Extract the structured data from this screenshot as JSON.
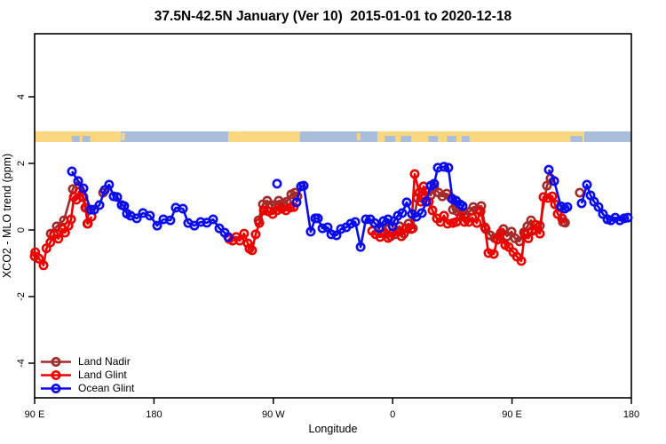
{
  "chart_data": {
    "type": "line",
    "title": "37.5N-42.5N January (Ver 10)  2015-01-01 to 2020-12-18",
    "xlabel": "Longitude",
    "ylabel": "XCO2 - MLO trend (ppm)",
    "x_axis": {
      "note": "x is degrees east of 90E, wrapping 450 degrees total",
      "range_deg": [
        0,
        450
      ],
      "ticks": [
        {
          "pos": 0,
          "label": "90 E"
        },
        {
          "pos": 90,
          "label": "180"
        },
        {
          "pos": 180,
          "label": "90 W"
        },
        {
          "pos": 270,
          "label": "0"
        },
        {
          "pos": 360,
          "label": "90 E"
        },
        {
          "pos": 450,
          "label": "180"
        }
      ]
    },
    "y_axis": {
      "ticks": [
        {
          "v": -4,
          "label": "-4"
        },
        {
          "v": -2,
          "label": "-2"
        },
        {
          "v": 0,
          "label": "0"
        },
        {
          "v": 2,
          "label": "2"
        },
        {
          "v": 4,
          "label": "4"
        }
      ],
      "range_ppm": [
        -5.0,
        5.9
      ],
      "grid": false
    },
    "map_strip": {
      "ppm_center": 2.8,
      "land_color": "#FAD67F",
      "ocean_color": "#A9BEDB",
      "segments": [
        {
          "from": 0,
          "to": 65,
          "type": "land"
        },
        {
          "from": 65,
          "to": 146,
          "type": "ocean"
        },
        {
          "from": 146,
          "to": 200,
          "type": "land"
        },
        {
          "from": 200,
          "to": 258.5,
          "type": "ocean"
        },
        {
          "from": 258.5,
          "to": 414.5,
          "type": "land"
        },
        {
          "from": 414.5,
          "to": 450,
          "type": "ocean"
        }
      ],
      "ocean_patches": [
        [
          28,
          34
        ],
        [
          36,
          42
        ],
        [
          264,
          272
        ],
        [
          276,
          284
        ],
        [
          297,
          304
        ],
        [
          311,
          318
        ],
        [
          322,
          328
        ],
        [
          404,
          413
        ]
      ],
      "land_patches": [
        [
          65.5,
          68
        ],
        [
          243,
          245.5
        ]
      ]
    },
    "legend_position": "bottom-left",
    "series": [
      {
        "name": "Land Nadir",
        "color": "#A52A2A",
        "segments": [
          [
            [
              12.1,
              -0.11
            ],
            [
              16.7,
              0.11
            ],
            [
              22.1,
              0.29
            ],
            [
              28.8,
              1.23
            ],
            [
              32.8,
              1.47
            ],
            [
              36.8,
              0.99
            ],
            [
              38.8,
              0.67
            ],
            [
              39.7,
              0.19
            ]
          ],
          [
            [
              51.6,
              1.12
            ]
          ],
          [
            [
              168.8,
              0.29
            ],
            [
              172.1,
              0.77
            ],
            [
              175.4,
              0.88
            ],
            [
              178.8,
              0.75
            ],
            [
              181.5,
              0.75
            ],
            [
              184.1,
              0.88
            ],
            [
              187.5,
              0.8
            ],
            [
              190.2,
              0.85
            ],
            [
              193.5,
              1.07
            ],
            [
              196.2,
              1.12
            ],
            [
              198.2,
              1.01
            ]
          ],
          [
            [
              261.8,
              0.08
            ],
            [
              265.2,
              0.03
            ],
            [
              268.5,
              -0.19
            ],
            [
              271.9,
              -0.13
            ],
            [
              275.2,
              0.11
            ],
            [
              278.6,
              -0.11
            ],
            [
              281.9,
              0.19
            ],
            [
              285.3,
              0.05
            ],
            [
              288.6,
              0.96
            ],
            [
              292,
              1.04
            ],
            [
              295.3,
              1.15
            ],
            [
              298.7,
              1.04
            ],
            [
              301.3,
              1.28
            ],
            [
              304.7,
              1.12
            ],
            [
              307.4,
              1.01
            ],
            [
              310.7,
              1.09
            ],
            [
              314.1,
              0.96
            ],
            [
              315.4,
              0.61
            ],
            [
              318.8,
              0.56
            ],
            [
              322.1,
              0.53
            ],
            [
              324.8,
              0.48
            ],
            [
              328.1,
              0.55
            ],
            [
              330.8,
              0.69
            ],
            [
              334.1,
              0.61
            ],
            [
              336.8,
              0.72
            ],
            [
              340.2,
              0.03
            ],
            [
              343.5,
              -0.16
            ],
            [
              346.9,
              -0.24
            ],
            [
              350.2,
              -0.19
            ],
            [
              353.5,
              0.03
            ],
            [
              356.2,
              -0.19
            ],
            [
              359.6,
              -0.05
            ],
            [
              362.3,
              -0.25
            ],
            [
              365.6,
              -0.34
            ],
            [
              369,
              -0.07
            ],
            [
              371.6,
              0.11
            ],
            [
              374.3,
              0.29
            ],
            [
              377.7,
              0.0
            ],
            [
              381,
              0.13
            ],
            [
              386.3,
              1.33
            ],
            [
              389,
              1.55
            ]
          ],
          [
            [
              398.4,
              0.24
            ],
            [
              400,
              0.22
            ]
          ],
          [
            [
              411.1,
              1.12
            ]
          ]
        ]
      },
      {
        "name": "Land Glint",
        "color": "#EE0000",
        "segments": [
          [
            [
              0,
              -0.79
            ],
            [
              0.5,
              -0.67
            ],
            [
              3.3,
              -0.86
            ],
            [
              6.7,
              -1.06
            ],
            [
              8.9,
              -0.55
            ],
            [
              11.9,
              -0.37
            ],
            [
              14.5,
              -0.13
            ],
            [
              17.9,
              -0.26
            ],
            [
              20.8,
              0.03
            ],
            [
              23,
              -0.08
            ],
            [
              25.6,
              0.13
            ],
            [
              27.5,
              0.32
            ],
            [
              29.5,
              0.99
            ],
            [
              31.5,
              0.91
            ],
            [
              33.5,
              1.15
            ],
            [
              36.2,
              0.99
            ],
            [
              38.2,
              0.67
            ],
            [
              40.2,
              0.19
            ],
            [
              42.9,
              0.4
            ]
          ],
          [
            [
              146.7,
              -0.27
            ],
            [
              149.3,
              -0.32
            ],
            [
              152,
              -0.21
            ],
            [
              154.7,
              -0.32
            ],
            [
              158,
              -0.11
            ],
            [
              160.7,
              -0.4
            ],
            [
              162,
              -0.56
            ],
            [
              164,
              -0.61
            ],
            [
              166.7,
              -0.13
            ],
            [
              169.4,
              0.21
            ],
            [
              172.8,
              0.59
            ],
            [
              176.1,
              0.56
            ],
            [
              179.5,
              0.48
            ],
            [
              182.8,
              0.59
            ],
            [
              186.2,
              0.64
            ],
            [
              189.5,
              0.59
            ],
            [
              192.8,
              0.67
            ],
            [
              195.5,
              0.69
            ]
          ],
          [
            [
              254.5,
              -0.03
            ],
            [
              257.1,
              -0.13
            ],
            [
              260.5,
              -0.21
            ],
            [
              263.8,
              -0.11
            ],
            [
              266.5,
              -0.24
            ],
            [
              269.9,
              -0.08
            ],
            [
              273.2,
              -0.03
            ],
            [
              276.6,
              -0.19
            ],
            [
              279.9,
              0.05
            ],
            [
              283.9,
              0.03
            ],
            [
              286.6,
              1.68
            ],
            [
              290,
              1.12
            ],
            [
              291.3,
              0.85
            ],
            [
              293.3,
              1.31
            ],
            [
              294.6,
              1.17
            ],
            [
              297.3,
              0.85
            ],
            [
              300,
              0.59
            ],
            [
              303.3,
              0.35
            ],
            [
              306,
              0.24
            ],
            [
              308.7,
              0.43
            ],
            [
              311.4,
              0.19
            ],
            [
              315.4,
              0.21
            ],
            [
              318.1,
              0.24
            ],
            [
              321.4,
              0.4
            ],
            [
              324.1,
              0.24
            ],
            [
              327.4,
              0.24
            ],
            [
              330.1,
              0.37
            ],
            [
              333.5,
              0.21
            ],
            [
              336.2,
              0.56
            ],
            [
              339.5,
              0.08
            ],
            [
              342.2,
              -0.69
            ],
            [
              346.2,
              -0.72
            ],
            [
              348.9,
              -0.29
            ],
            [
              351.6,
              -0.08
            ],
            [
              354.9,
              -0.45
            ],
            [
              357.6,
              -0.51
            ],
            [
              361,
              -0.67
            ],
            [
              363.6,
              -0.8
            ],
            [
              367,
              -0.93
            ],
            [
              369.6,
              -0.13
            ],
            [
              372.3,
              -0.25
            ],
            [
              375,
              -0.03
            ],
            [
              377.7,
              0.16
            ],
            [
              381,
              -0.11
            ],
            [
              383.7,
              0.99
            ],
            [
              387,
              0.96
            ],
            [
              390.4,
              1.01
            ],
            [
              392.4,
              0.77
            ],
            [
              394.4,
              0.48
            ],
            [
              397.7,
              0.35
            ]
          ]
        ]
      },
      {
        "name": "Ocean Glint",
        "color": "#0B0BEE",
        "segments": [
          [
            [
              28.1,
              1.76
            ],
            [
              32.8,
              1.47
            ],
            [
              36.8,
              1.25
            ],
            [
              42.2,
              0.61
            ],
            [
              44.9,
              0.61
            ],
            [
              48.9,
              0.75
            ],
            [
              52.9,
              1.2
            ],
            [
              56.2,
              1.36
            ],
            [
              59.6,
              1.01
            ],
            [
              62.3,
              0.99
            ],
            [
              65.6,
              0.75
            ],
            [
              67.6,
              0.72
            ],
            [
              69.6,
              0.49
            ],
            [
              72.3,
              0.43
            ],
            [
              77,
              0.35
            ],
            [
              81.7,
              0.51
            ],
            [
              87,
              0.43
            ],
            [
              92.4,
              0.13
            ],
            [
              97.1,
              0.32
            ],
            [
              102.4,
              0.29
            ],
            [
              106.4,
              0.67
            ],
            [
              111.8,
              0.64
            ],
            [
              115.8,
              0.21
            ],
            [
              120.5,
              0.13
            ],
            [
              125.2,
              0.24
            ],
            [
              129.9,
              0.22
            ],
            [
              134.6,
              0.32
            ],
            [
              139.3,
              0.05
            ],
            [
              143.3,
              -0.08
            ],
            [
              146,
              -0.21
            ]
          ],
          [
            [
              182.8,
              1.39
            ]
          ],
          [
            [
              197.5,
              0.83
            ],
            [
              200.9,
              1.31
            ],
            [
              202.9,
              1.33
            ],
            [
              208.2,
              -0.05
            ],
            [
              211.6,
              0.35
            ],
            [
              213.6,
              0.35
            ],
            [
              217,
              0.05
            ],
            [
              221,
              0.08
            ],
            [
              223.7,
              -0.13
            ],
            [
              227.7,
              -0.16
            ],
            [
              231,
              0.03
            ],
            [
              235,
              0.08
            ],
            [
              238.4,
              0.19
            ],
            [
              241.8,
              0.24
            ],
            [
              245.8,
              -0.51
            ],
            [
              249.8,
              0.32
            ],
            [
              253.1,
              0.32
            ],
            [
              256.4,
              0.21
            ],
            [
              259.8,
              0.06
            ],
            [
              263.1,
              0.27
            ],
            [
              266.5,
              0.32
            ],
            [
              269.9,
              0.11
            ],
            [
              271.2,
              0.27
            ],
            [
              273.9,
              0.43
            ],
            [
              277.2,
              0.51
            ],
            [
              280.6,
              0.83
            ],
            [
              284.6,
              0.48
            ],
            [
              287.9,
              0.4
            ],
            [
              292,
              0.51
            ],
            [
              295.3,
              0.85
            ],
            [
              298.7,
              1.33
            ],
            [
              301.3,
              1.39
            ],
            [
              304,
              1.87
            ],
            [
              308.7,
              1.9
            ],
            [
              312,
              1.87
            ],
            [
              315.1,
              0.93
            ],
            [
              317.8,
              0.88
            ],
            [
              320.8,
              0.77
            ],
            [
              322.8,
              0.72
            ]
          ],
          [
            [
              387.7,
              1.81
            ],
            [
              391.8,
              1.47
            ],
            [
              396.9,
              0.71
            ],
            [
              399.8,
              0.64
            ],
            [
              401.8,
              0.69
            ]
          ],
          [
            [
              412.5,
              0.8
            ],
            [
              416.5,
              1.36
            ],
            [
              419.2,
              1.04
            ],
            [
              421.9,
              0.85
            ],
            [
              425.2,
              0.69
            ],
            [
              428.6,
              0.48
            ],
            [
              431.9,
              0.32
            ],
            [
              434.6,
              0.29
            ],
            [
              437.9,
              0.37
            ],
            [
              441.3,
              0.29
            ],
            [
              444.6,
              0.35
            ],
            [
              447.3,
              0.37
            ]
          ]
        ]
      }
    ]
  }
}
